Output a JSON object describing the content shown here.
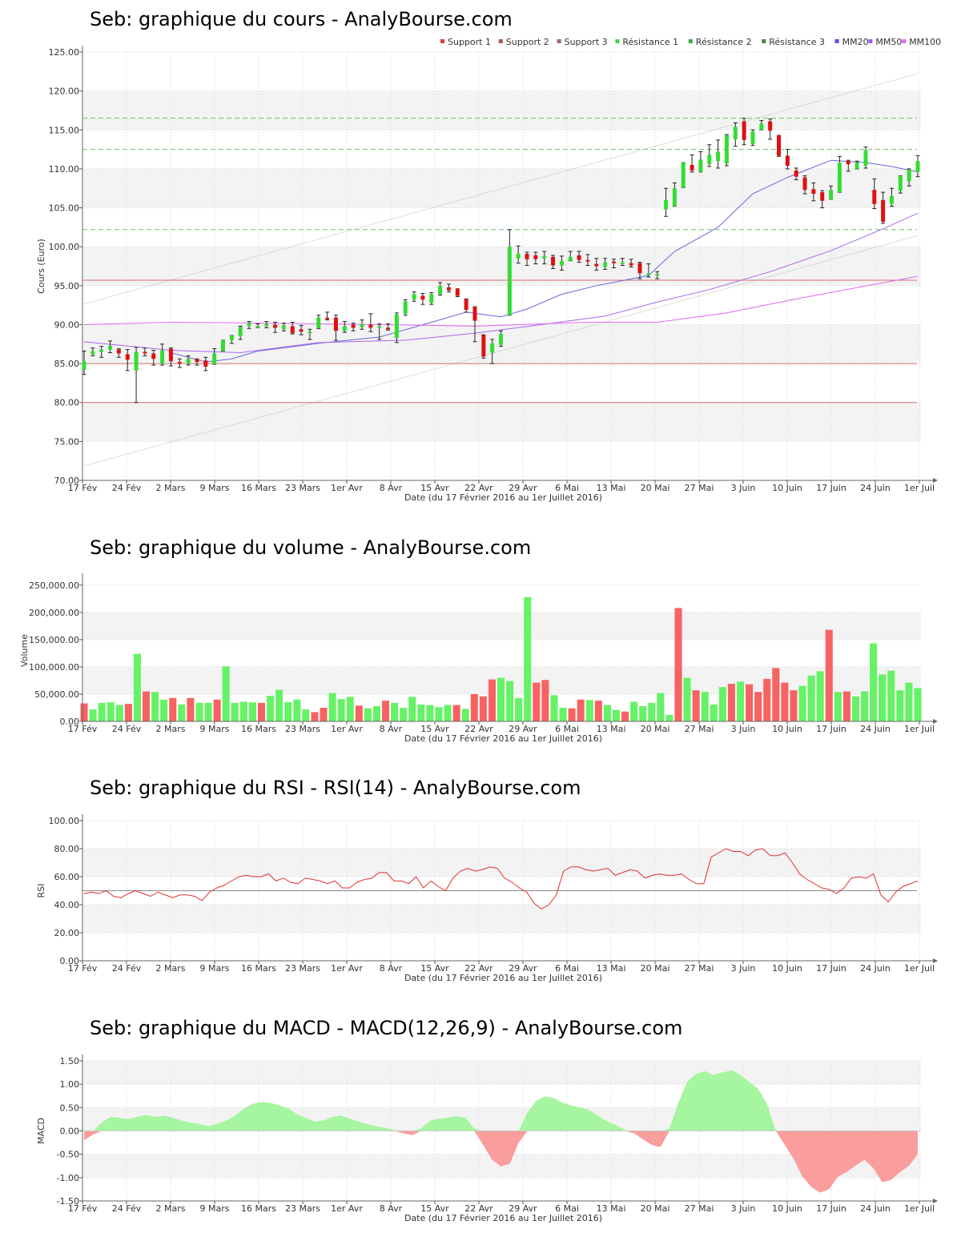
{
  "chart_data": [
    {
      "type": "candlestick",
      "title": "Seb: graphique du cours - AnalyBourse.com",
      "xlabel": "Date (du 17 Février 2016 au 1er Juillet 2016)",
      "ylabel": "Cours (Euro)",
      "ylim": [
        70,
        125
      ],
      "yticks": [
        "70.00",
        "75.00",
        "80.00",
        "85.00",
        "90.00",
        "95.00",
        "100.00",
        "105.00",
        "110.00",
        "115.00",
        "120.00",
        "125.00"
      ],
      "xticks": [
        "17 Fév",
        "24 Fév",
        "2 Mars",
        "9 Mars",
        "16 Mars",
        "23 Mars",
        "1er Avr",
        "8 Avr",
        "15 Avr",
        "22 Avr",
        "29 Avr",
        "6 Mai",
        "13 Mai",
        "20 Mai",
        "27 Mai",
        "3 Juin",
        "10 Juin",
        "17 Juin",
        "24 Juin",
        "1er Juil"
      ],
      "legend": [
        {
          "label": "Support 1",
          "color": "#e03c3c"
        },
        {
          "label": "Support 2",
          "color": "#b25555"
        },
        {
          "label": "Support 3",
          "color": "#9c6c6c"
        },
        {
          "label": "Résistance 1",
          "color": "#4ccc4c"
        },
        {
          "label": "Résistance 2",
          "color": "#44aa44"
        },
        {
          "label": "Résistance 3",
          "color": "#448844"
        },
        {
          "label": "MM20",
          "color": "#5555ee"
        },
        {
          "label": "MM50",
          "color": "#aa55ee"
        },
        {
          "label": "MM100",
          "color": "#ee66ee"
        }
      ],
      "levels": {
        "support": [
          95.7,
          85.0,
          80.0
        ],
        "resistance": [
          102.2,
          112.5,
          116.5
        ]
      },
      "channel": {
        "upper": [
          92.6,
          122.2
        ],
        "lower": [
          71.8,
          101.4
        ]
      },
      "candles": [
        [
          84.2,
          85.3,
          86.6,
          83.6
        ],
        [
          86.2,
          86.6,
          87.0,
          86.0
        ],
        [
          86.5,
          86.8,
          87.2,
          85.8
        ],
        [
          86.8,
          87.3,
          87.9,
          86.4
        ],
        [
          86.8,
          86.3,
          86.9,
          85.8
        ],
        [
          86.2,
          85.5,
          86.8,
          84.1
        ],
        [
          84.1,
          86.5,
          87.1,
          80.0
        ],
        [
          86.5,
          86.4,
          87.0,
          86.0
        ],
        [
          86.3,
          85.6,
          86.7,
          84.8
        ],
        [
          85.0,
          86.7,
          87.5,
          84.8
        ],
        [
          86.9,
          85.3,
          87.0,
          84.7
        ],
        [
          85.2,
          85.0,
          85.6,
          84.5
        ],
        [
          85.0,
          85.6,
          86.0,
          84.8
        ],
        [
          85.6,
          85.2,
          85.6,
          84.8
        ],
        [
          85.4,
          84.6,
          85.8,
          84.1
        ],
        [
          84.9,
          86.3,
          86.9,
          84.9
        ],
        [
          86.6,
          88.0,
          88.0,
          86.6
        ],
        [
          88.0,
          88.6,
          88.6,
          87.6
        ],
        [
          88.5,
          89.7,
          89.8,
          88.1
        ],
        [
          89.8,
          90.2,
          90.4,
          89.5
        ],
        [
          89.8,
          89.8,
          90.1,
          89.6
        ],
        [
          89.8,
          90.1,
          90.4,
          89.6
        ],
        [
          90.0,
          89.6,
          90.3,
          89.0
        ],
        [
          89.4,
          89.9,
          90.2,
          89.2
        ],
        [
          89.8,
          88.9,
          90.3,
          88.8
        ],
        [
          89.4,
          89.1,
          89.9,
          88.7
        ],
        [
          88.9,
          89.1,
          89.4,
          88.1
        ],
        [
          89.6,
          90.9,
          91.2,
          89.5
        ],
        [
          90.9,
          90.8,
          91.6,
          90.6
        ],
        [
          90.9,
          89.2,
          91.2,
          88.0
        ],
        [
          89.2,
          89.8,
          90.4,
          89.0
        ],
        [
          90.0,
          89.6,
          90.2,
          89.2
        ],
        [
          89.7,
          90.1,
          90.6,
          89.4
        ],
        [
          90.0,
          89.6,
          91.4,
          89.1
        ],
        [
          89.6,
          89.8,
          90.1,
          88.1
        ],
        [
          89.6,
          89.4,
          90.1,
          89.3
        ],
        [
          88.3,
          91.3,
          91.5,
          87.7
        ],
        [
          91.4,
          93.0,
          93.2,
          91.2
        ],
        [
          93.2,
          93.9,
          94.2,
          93.0
        ],
        [
          93.7,
          93.2,
          94.0,
          92.6
        ],
        [
          92.8,
          93.9,
          94.1,
          92.6
        ],
        [
          93.9,
          95.0,
          95.4,
          93.8
        ],
        [
          94.8,
          94.4,
          95.2,
          94.2
        ],
        [
          94.6,
          93.7,
          94.6,
          93.6
        ],
        [
          93.3,
          91.9,
          93.3,
          91.6
        ],
        [
          92.3,
          90.5,
          92.3,
          87.8
        ],
        [
          88.7,
          85.9,
          88.7,
          85.7
        ],
        [
          86.4,
          87.6,
          88.1,
          85.0
        ],
        [
          87.4,
          88.8,
          89.2,
          87.2
        ],
        [
          91.2,
          100.0,
          102.2,
          91.2
        ],
        [
          98.5,
          99.1,
          100.1,
          97.9
        ],
        [
          99.1,
          98.4,
          99.3,
          97.6
        ],
        [
          98.9,
          98.4,
          99.3,
          97.8
        ],
        [
          98.5,
          98.8,
          99.4,
          97.8
        ],
        [
          98.7,
          97.6,
          98.9,
          97.2
        ],
        [
          97.6,
          98.2,
          98.8,
          97.0
        ],
        [
          98.2,
          98.7,
          99.4,
          98.2
        ],
        [
          98.9,
          98.3,
          99.4,
          98.0
        ],
        [
          98.3,
          98.1,
          99.0,
          97.6
        ],
        [
          97.8,
          97.5,
          98.5,
          97.0
        ],
        [
          97.4,
          98.0,
          98.5,
          97.1
        ],
        [
          98.1,
          97.9,
          98.4,
          97.3
        ],
        [
          97.8,
          98.0,
          98.5,
          97.6
        ],
        [
          97.9,
          97.6,
          98.4,
          97.4
        ],
        [
          97.9,
          96.6,
          98.0,
          95.9
        ],
        [
          96.4,
          96.6,
          97.8,
          96.1
        ],
        [
          96.3,
          96.5,
          96.8,
          95.9
        ],
        [
          104.8,
          106.0,
          107.5,
          103.9
        ],
        [
          105.2,
          107.5,
          108.2,
          105.2
        ],
        [
          107.6,
          110.8,
          110.8,
          107.6
        ],
        [
          110.5,
          109.8,
          111.8,
          109.6
        ],
        [
          109.6,
          111.2,
          112.2,
          109.6
        ],
        [
          110.6,
          111.8,
          113.1,
          110.3
        ],
        [
          111.0,
          112.2,
          113.7,
          110.1
        ],
        [
          110.7,
          114.3,
          114.4,
          110.4
        ],
        [
          113.8,
          115.4,
          115.9,
          112.9
        ],
        [
          116.1,
          113.7,
          116.5,
          113.1
        ],
        [
          113.2,
          114.8,
          115.0,
          113.0
        ],
        [
          115.0,
          115.8,
          116.2,
          115.0
        ],
        [
          116.1,
          114.9,
          116.4,
          113.8
        ],
        [
          114.3,
          111.7,
          114.3,
          111.6
        ],
        [
          111.7,
          110.4,
          112.5,
          110.0
        ],
        [
          109.8,
          109.0,
          110.1,
          108.6
        ],
        [
          108.9,
          107.3,
          109.1,
          106.8
        ],
        [
          107.4,
          106.8,
          108.2,
          105.9
        ],
        [
          107.0,
          105.9,
          107.2,
          105.0
        ],
        [
          106.1,
          107.3,
          107.8,
          106.1
        ],
        [
          107.0,
          110.8,
          111.6,
          107.0
        ],
        [
          111.0,
          110.6,
          111.1,
          109.7
        ],
        [
          110.0,
          110.8,
          111.0,
          110.0
        ],
        [
          110.4,
          112.4,
          112.8,
          110.1
        ],
        [
          107.3,
          105.5,
          108.7,
          104.9
        ],
        [
          106.0,
          103.2,
          107.0,
          103.0
        ],
        [
          105.5,
          106.5,
          107.5,
          105.2
        ],
        [
          107.2,
          109.1,
          109.1,
          106.9
        ],
        [
          108.4,
          109.9,
          110.0,
          107.8
        ],
        [
          109.6,
          111.0,
          111.7,
          109.0
        ]
      ],
      "series": [
        {
          "name": "MM20",
          "color": "#6666dd",
          "points": [
            [
              10,
              86.4
            ],
            [
              14,
              85.2
            ],
            [
              17,
              85.6
            ],
            [
              20,
              86.6
            ],
            [
              27,
              87.6
            ],
            [
              34,
              88.4
            ],
            [
              40,
              90.3
            ],
            [
              44,
              91.6
            ],
            [
              48,
              91.0
            ],
            [
              51,
              92.0
            ],
            [
              55,
              93.9
            ],
            [
              59,
              95.0
            ],
            [
              65,
              96.3
            ],
            [
              68,
              99.4
            ],
            [
              73,
              102.5
            ],
            [
              77,
              106.8
            ],
            [
              81,
              108.9
            ],
            [
              86,
              111.1
            ],
            [
              90,
              110.8
            ],
            [
              93,
              110.3
            ],
            [
              96,
              109.6
            ]
          ]
        },
        {
          "name": "MM50",
          "color": "#aa66ee",
          "points": [
            [
              0,
              87.8
            ],
            [
              10,
              86.7
            ],
            [
              18,
              86.4
            ],
            [
              27,
              87.7
            ],
            [
              37,
              88.0
            ],
            [
              45,
              88.9
            ],
            [
              52,
              89.9
            ],
            [
              60,
              91.1
            ],
            [
              66,
              92.9
            ],
            [
              72,
              94.5
            ],
            [
              79,
              96.8
            ],
            [
              86,
              99.5
            ],
            [
              92,
              102.3
            ],
            [
              96,
              104.3
            ]
          ]
        },
        {
          "name": "MM100",
          "color": "#dd66ee",
          "points": [
            [
              0,
              90.0
            ],
            [
              10,
              90.3
            ],
            [
              20,
              90.2
            ],
            [
              35,
              90.0
            ],
            [
              45,
              89.8
            ],
            [
              58,
              90.3
            ],
            [
              66,
              90.3
            ],
            [
              74,
              91.5
            ],
            [
              82,
              93.3
            ],
            [
              96,
              96.2
            ]
          ]
        }
      ]
    },
    {
      "type": "bar",
      "title": "Seb: graphique du volume - AnalyBourse.com",
      "xlabel": "Date (du 17 Février 2016 au 1er Juillet 2016)",
      "ylabel": "Volume",
      "ylim": [
        0,
        260000
      ],
      "yticks": [
        "0.00",
        "50,000.00",
        "100,000.00",
        "150,000.00",
        "200,000.00",
        "250,000.00"
      ],
      "values": [
        33000,
        22000,
        34000,
        35000,
        30000,
        32000,
        124000,
        55000,
        54000,
        40000,
        43000,
        31000,
        43000,
        34000,
        34000,
        40000,
        101000,
        34000,
        36000,
        35000,
        34000,
        47000,
        58000,
        35000,
        40000,
        22000,
        17000,
        25000,
        52000,
        41000,
        45000,
        29000,
        24000,
        28000,
        38000,
        34000,
        25000,
        45000,
        31000,
        30000,
        26000,
        30000,
        30000,
        23000,
        50000,
        46000,
        77000,
        80000,
        74000,
        43000,
        228000,
        71000,
        76000,
        48000,
        25000,
        24000,
        40000,
        39000,
        38000,
        30000,
        21000,
        18000,
        36000,
        28000,
        34000,
        52000,
        12000,
        208000,
        80000,
        57000,
        54000,
        31000,
        63000,
        69000,
        73000,
        68000,
        54000,
        78000,
        98000,
        71000,
        57000,
        65000,
        84000,
        92000,
        168000,
        54000,
        55000,
        46000,
        55000,
        143000,
        86000,
        93000,
        57000,
        71000,
        61000
      ],
      "colors": "rggggrgrggrgrggrggggrgggggrrgggrggrgggggggrgrrrggggrrggrrgrggrgggggrgrgggrgrrrrrrgggrgrgggg"
    },
    {
      "type": "line",
      "title": "Seb: graphique du RSI - RSI(14) - AnalyBourse.com",
      "xlabel": "Date (du 17 Février 2016 au 1er Juillet 2016)",
      "ylabel": "RSI",
      "ylim": [
        0,
        100
      ],
      "yticks": [
        "0.00",
        "20.00",
        "40.00",
        "60.00",
        "80.00",
        "100.00"
      ],
      "reference": 50,
      "values": [
        48,
        49,
        48,
        50,
        46,
        45,
        48,
        50,
        48,
        46,
        49,
        47,
        45,
        47,
        47,
        46,
        43,
        49,
        52,
        54,
        57,
        60,
        61,
        60,
        60,
        62,
        57,
        59,
        56,
        55,
        59,
        58,
        57,
        55,
        57,
        52,
        52,
        56,
        58,
        59,
        63,
        63,
        57,
        57,
        55,
        60,
        52,
        57,
        53,
        50,
        59,
        64,
        66,
        64,
        65,
        67,
        66,
        59,
        56,
        52,
        49,
        41,
        37,
        40,
        47,
        64,
        67,
        67,
        65,
        64,
        65,
        66,
        61,
        63,
        65,
        64,
        59,
        61,
        62,
        61,
        61,
        62,
        58,
        55,
        55,
        74,
        77,
        80,
        78,
        78,
        75,
        79,
        80,
        75,
        75,
        77,
        70,
        62,
        58,
        55,
        52,
        51,
        48,
        52,
        59,
        60,
        59,
        62,
        47,
        42,
        49,
        53,
        55,
        57
      ]
    },
    {
      "type": "area",
      "title": "Seb: graphique du MACD - MACD(12,26,9) - AnalyBourse.com",
      "xlabel": "Date (du 17 Février 2016 au 1er Juillet 2016)",
      "ylabel": "MACD",
      "ylim": [
        -1.5,
        1.5
      ],
      "yticks": [
        "-1.50",
        "-1.00",
        "-0.50",
        "0.00",
        "0.50",
        "1.00",
        "1.50"
      ],
      "values": [
        -0.2,
        -0.08,
        0.18,
        0.3,
        0.28,
        0.25,
        0.3,
        0.34,
        0.3,
        0.33,
        0.28,
        0.22,
        0.18,
        0.15,
        0.1,
        0.15,
        0.22,
        0.32,
        0.48,
        0.58,
        0.62,
        0.6,
        0.55,
        0.48,
        0.36,
        0.28,
        0.2,
        0.22,
        0.3,
        0.33,
        0.26,
        0.2,
        0.14,
        0.1,
        0.06,
        0.02,
        -0.05,
        -0.09,
        0.05,
        0.22,
        0.26,
        0.28,
        0.32,
        0.28,
        0.05,
        -0.3,
        -0.62,
        -0.76,
        -0.7,
        -0.25,
        0.4,
        0.65,
        0.74,
        0.7,
        0.6,
        0.54,
        0.5,
        0.44,
        0.32,
        0.2,
        0.12,
        0.02,
        -0.05,
        -0.18,
        -0.3,
        -0.35,
        0.05,
        0.6,
        1.05,
        1.22,
        1.28,
        1.2,
        1.25,
        1.3,
        1.2,
        1.05,
        0.9,
        0.58,
        0.0,
        -0.3,
        -0.6,
        -0.98,
        -1.2,
        -1.32,
        -1.25,
        -0.98,
        -0.88,
        -0.74,
        -0.62,
        -0.8,
        -1.1,
        -1.05,
        -0.88,
        -0.75,
        -0.5
      ]
    }
  ]
}
